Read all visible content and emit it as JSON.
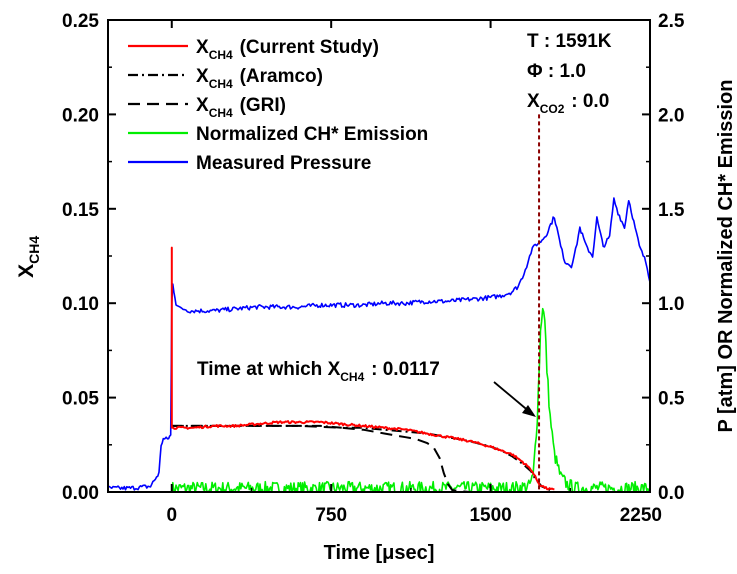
{
  "chart_data": {
    "type": "line",
    "xlabel": "Time [μsec]",
    "ylabel_left": {
      "main": "X",
      "sub": "CH4"
    },
    "ylabel_right": "P [atm] OR Normalized CH* Emission",
    "xlim": [
      -300,
      2250
    ],
    "ylim_left": [
      0,
      0.25
    ],
    "ylim_right": [
      0,
      2.5
    ],
    "x_ticks": [
      "0",
      "750",
      "1500",
      "2250"
    ],
    "y_left_ticks": [
      "0.00",
      "0.05",
      "0.10",
      "0.15",
      "0.20",
      "0.25"
    ],
    "y_right_ticks": [
      "0.0",
      "0.5",
      "1.0",
      "1.5",
      "2.0",
      "2.5"
    ],
    "grid": false,
    "legend_position": "top-left",
    "legend": [
      {
        "main": "X",
        "sub": "CH4",
        "rest": " (Current Study)",
        "color": "#ff0000",
        "dash": "solid"
      },
      {
        "main": "X",
        "sub": "CH4",
        "rest": " (Aramco)",
        "color": "#000000",
        "dash": "dashdot"
      },
      {
        "main": "X",
        "sub": "CH4",
        "rest": " (GRI)",
        "color": "#000000",
        "dash": "dashed"
      },
      {
        "main": "",
        "sub": "",
        "rest": "Normalized CH* Emission",
        "color": "#00ee00",
        "dash": "solid"
      },
      {
        "main": "",
        "sub": "",
        "rest": "Measured Pressure",
        "color": "#0000ff",
        "dash": "solid"
      }
    ],
    "conditions": [
      {
        "main": "T : 1591K",
        "sub": "",
        "rest": ""
      },
      {
        "main": "Φ : 1.0",
        "sub": "",
        "rest": ""
      },
      {
        "main": "X",
        "sub": "CO2",
        "rest": " : 0.0"
      }
    ],
    "annotation": {
      "main": "Time at which X",
      "sub": "CH4",
      "rest": " : 0.0117",
      "x": 1728
    },
    "series": [
      {
        "name": "Current Study",
        "axis": "left",
        "color": "#ff0000",
        "x": [
          0,
          0,
          0,
          15,
          50,
          100,
          200,
          300,
          400,
          500,
          600,
          700,
          800,
          900,
          1000,
          1100,
          1200,
          1300,
          1400,
          1500,
          1550,
          1600,
          1650,
          1690,
          1710,
          1730,
          1760,
          1800
        ],
        "y": [
          0.07,
          0.13,
          0.034,
          0.034,
          0.034,
          0.034,
          0.035,
          0.035,
          0.036,
          0.037,
          0.037,
          0.037,
          0.036,
          0.035,
          0.034,
          0.033,
          0.031,
          0.029,
          0.027,
          0.024,
          0.022,
          0.02,
          0.016,
          0.012,
          0.008,
          0.004,
          0.002,
          0.001
        ]
      },
      {
        "name": "Aramco",
        "axis": "left",
        "color": "#000000",
        "x": [
          0,
          100,
          200,
          300,
          400,
          500,
          600,
          700,
          800,
          900,
          1000,
          1100,
          1200,
          1300,
          1400,
          1500,
          1550,
          1600,
          1650,
          1690,
          1710,
          1740,
          1780
        ],
        "y": [
          0.035,
          0.035,
          0.035,
          0.035,
          0.035,
          0.035,
          0.035,
          0.035,
          0.034,
          0.034,
          0.033,
          0.032,
          0.031,
          0.029,
          0.027,
          0.024,
          0.022,
          0.019,
          0.015,
          0.011,
          0.007,
          0.003,
          0.001
        ]
      },
      {
        "name": "GRI",
        "axis": "left",
        "color": "#000000",
        "x": [
          0,
          200,
          400,
          600,
          800,
          900,
          1000,
          1050,
          1100,
          1150,
          1200,
          1230,
          1260,
          1280,
          1300,
          1320,
          1400,
          1500
        ],
        "y": [
          0.035,
          0.035,
          0.035,
          0.035,
          0.034,
          0.033,
          0.031,
          0.03,
          0.029,
          0.028,
          0.026,
          0.024,
          0.018,
          0.01,
          0.004,
          0.001,
          0.0,
          0.0
        ]
      },
      {
        "name": "Normalized CH* Emission",
        "axis": "right",
        "color": "#00ee00",
        "x": [
          0,
          200,
          400,
          600,
          800,
          1000,
          1200,
          1400,
          1600,
          1680,
          1700,
          1720,
          1735,
          1745,
          1755,
          1765,
          1780,
          1800,
          1830,
          1860,
          1900,
          2000,
          2100,
          2250
        ],
        "y": [
          0.02,
          0.02,
          0.02,
          0.02,
          0.02,
          0.02,
          0.02,
          0.02,
          0.02,
          0.03,
          0.08,
          0.4,
          0.85,
          0.99,
          0.9,
          0.65,
          0.4,
          0.2,
          0.08,
          0.04,
          0.02,
          0.02,
          0.02,
          0.02
        ]
      },
      {
        "name": "Measured Pressure",
        "axis": "right",
        "color": "#0000ff",
        "x": [
          -300,
          -200,
          -100,
          -60,
          -50,
          -40,
          -20,
          -5,
          0,
          5,
          20,
          40,
          60,
          80,
          100,
          150,
          200,
          300,
          400,
          500,
          600,
          700,
          800,
          900,
          1000,
          1100,
          1200,
          1300,
          1400,
          1500,
          1550,
          1600,
          1630,
          1650,
          1670,
          1690,
          1710,
          1730,
          1760,
          1800,
          1830,
          1850,
          1880,
          1900,
          1920,
          1950,
          1980,
          2000,
          2030,
          2060,
          2080,
          2100,
          2130,
          2150,
          2180,
          2200,
          2230,
          2250
        ],
        "y": [
          0.02,
          0.02,
          0.03,
          0.1,
          0.25,
          0.28,
          0.28,
          0.3,
          1.0,
          1.1,
          1.0,
          0.97,
          0.97,
          0.96,
          0.96,
          0.96,
          0.96,
          0.97,
          0.98,
          0.98,
          0.98,
          0.99,
          0.99,
          0.99,
          1.0,
          1.0,
          1.01,
          1.01,
          1.02,
          1.03,
          1.04,
          1.06,
          1.09,
          1.14,
          1.2,
          1.27,
          1.31,
          1.32,
          1.36,
          1.46,
          1.3,
          1.22,
          1.2,
          1.28,
          1.4,
          1.3,
          1.25,
          1.45,
          1.3,
          1.35,
          1.55,
          1.48,
          1.4,
          1.55,
          1.4,
          1.3,
          1.22,
          1.12
        ]
      }
    ]
  }
}
